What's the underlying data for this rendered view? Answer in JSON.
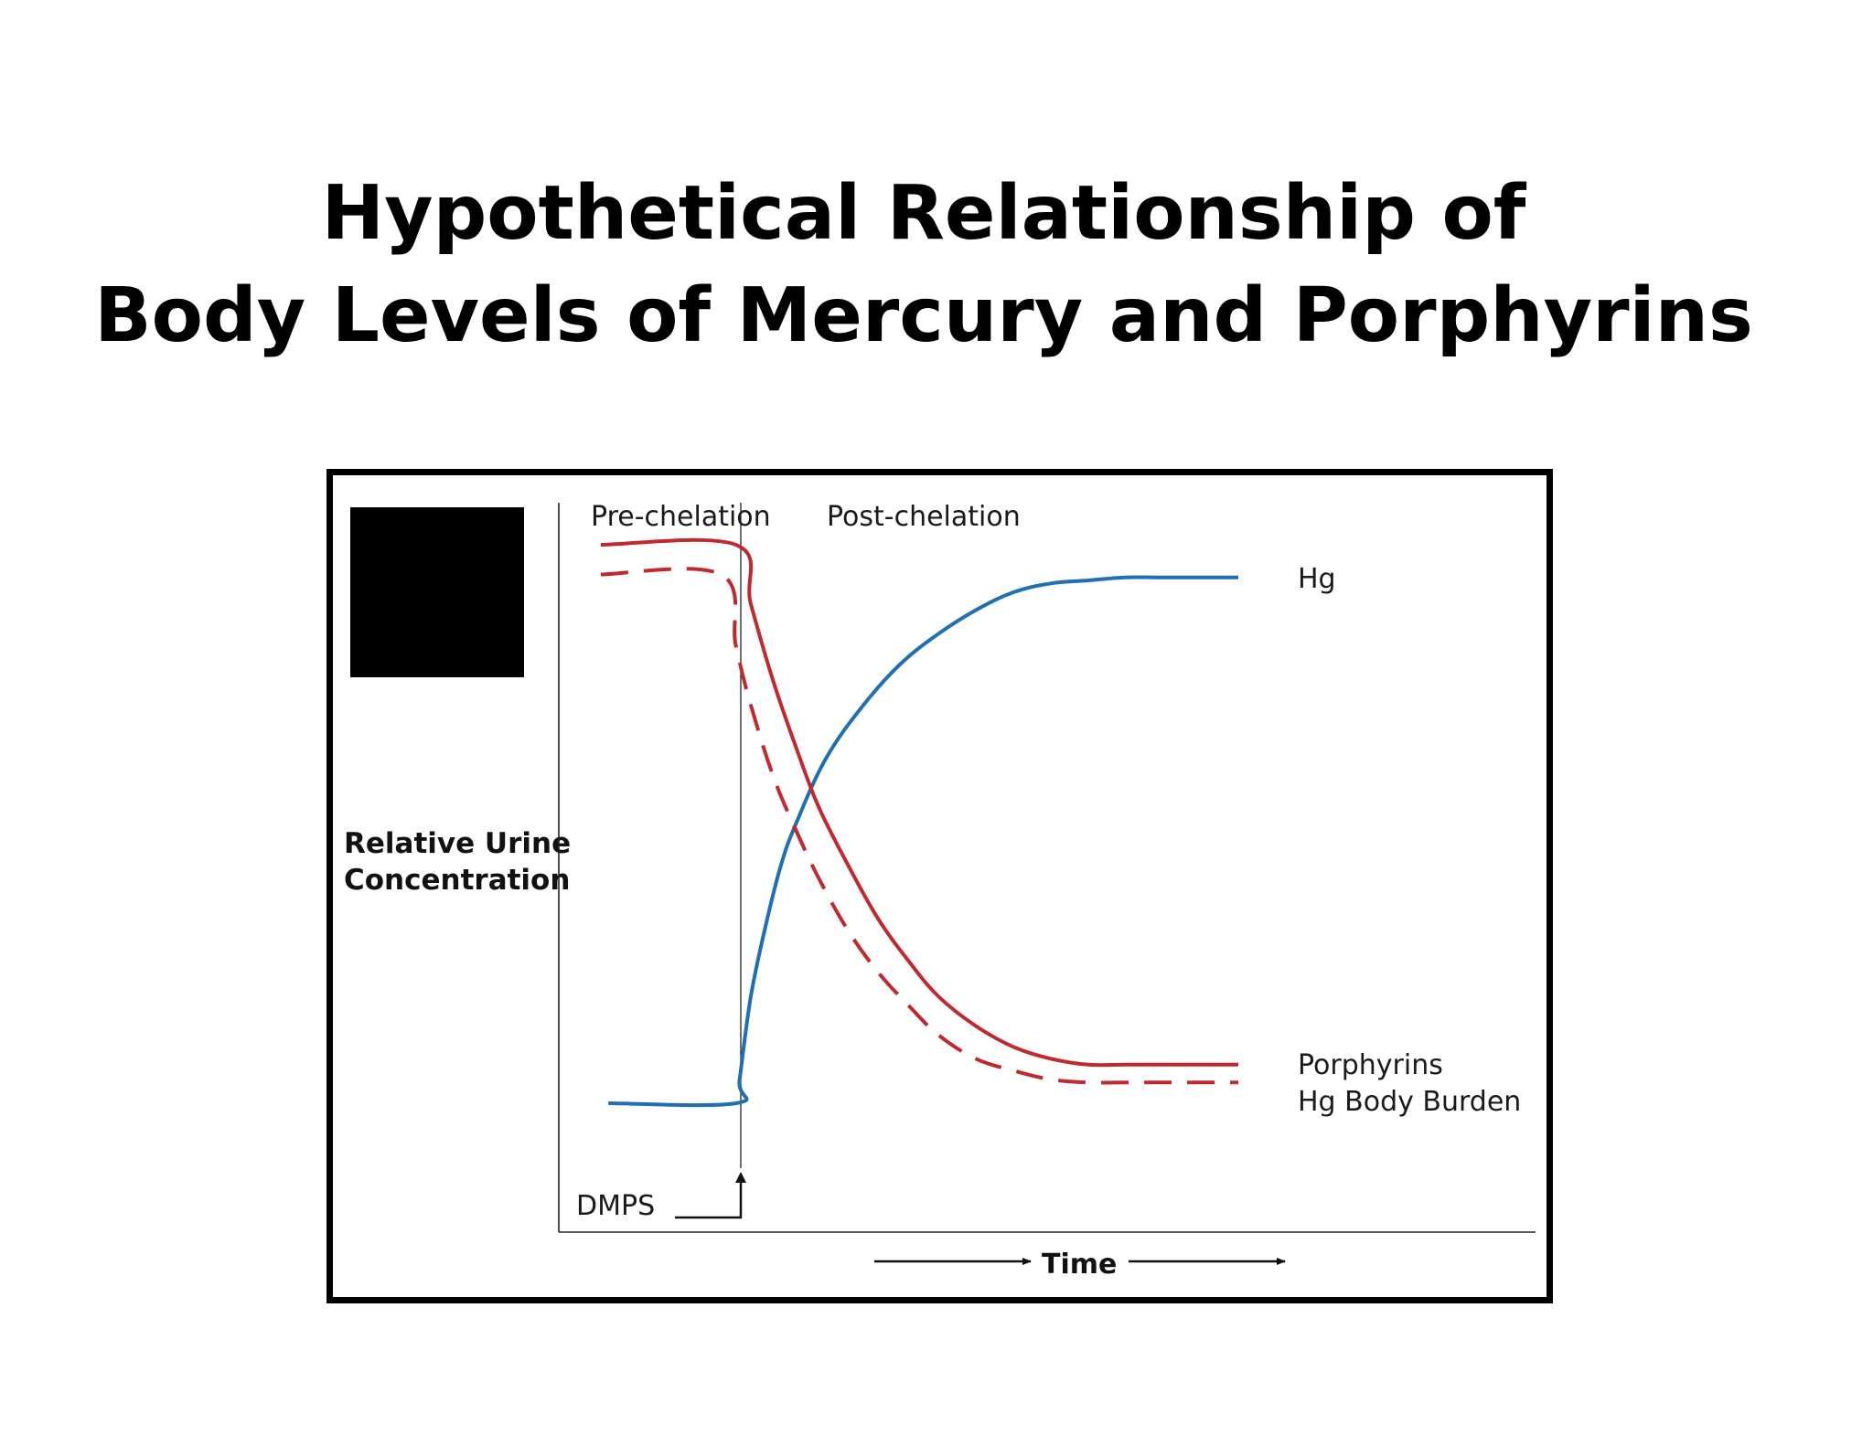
{
  "title": {
    "line1": "Hypothetical Relationship of",
    "line2": "Body Levels of Mercury and Porphyrins"
  },
  "chart_data": {
    "type": "line",
    "title": "Hypothetical Relationship of Body Levels of Mercury and Porphyrins",
    "xlabel": "Time",
    "ylabel": [
      "Relative Urine",
      "Concentration"
    ],
    "phases": [
      "Pre-chelation",
      "Post-chelation"
    ],
    "event_label": "DMPS",
    "xlim": [
      0,
      100
    ],
    "ylim": [
      0,
      100
    ],
    "grid": false,
    "axis_ticks": false,
    "colors": {
      "hg": "#1f6fb5",
      "porphyrins": "#c0292e",
      "body_burden": "#c0292e"
    },
    "series": [
      {
        "name": "Hg",
        "style": "solid",
        "x": [
          6,
          23,
          23.5,
          25,
          27,
          29,
          31,
          35,
          40,
          45,
          50,
          55,
          60,
          65,
          70,
          75,
          80,
          85,
          90
        ],
        "y": [
          6,
          6,
          10,
          24,
          36,
          46,
          53,
          64,
          73,
          80,
          85,
          89,
          92,
          93.5,
          94,
          94.5,
          94.5,
          94.5,
          94.5
        ]
      },
      {
        "name": "Porphyrins",
        "style": "solid",
        "x": [
          5,
          23,
          25,
          28,
          31,
          34,
          38,
          42,
          46,
          50,
          55,
          60,
          65,
          70,
          75,
          80,
          85,
          90
        ],
        "y": [
          100,
          100,
          90,
          77,
          66,
          56,
          46,
          37,
          30,
          24,
          19,
          15.5,
          13.5,
          12.5,
          12.5,
          12.5,
          12.5,
          12.5
        ]
      },
      {
        "name": "Hg Body Burden",
        "style": "dashed",
        "x": [
          5,
          21,
          23,
          25,
          28,
          31,
          34,
          38,
          42,
          46,
          50,
          55,
          60,
          65,
          70,
          75,
          80,
          85,
          90
        ],
        "y": [
          95,
          95,
          83,
          73,
          61,
          52,
          44,
          35,
          28,
          22.5,
          17.5,
          13.5,
          11.5,
          10,
          9.5,
          9.5,
          9.5,
          9.5,
          9.5
        ]
      }
    ],
    "series_label_text": {
      "hg": "Hg",
      "porphyrins": "Porphyrins",
      "body_burden": "Hg Body Burden"
    }
  }
}
